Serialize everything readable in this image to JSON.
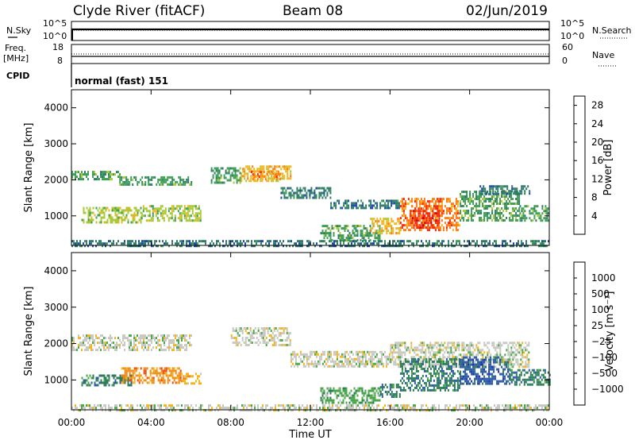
{
  "header": {
    "station": "Clyde River (fitACF)",
    "beam": "Beam 08",
    "date": "02/Jun/2019"
  },
  "status_panels": {
    "nsky_label": "N.Sky",
    "nsky_ticks": [
      "10^5",
      "10^0"
    ],
    "nsearch_label": "N.Search",
    "nsearch_ticks": [
      "10^5",
      "10^0"
    ],
    "freq_label": "Freq.",
    "freq_unit": "[MHz]",
    "freq_ticks": [
      "18",
      "8"
    ],
    "nave_label": "Nave",
    "nave_ticks": [
      "60",
      "0"
    ],
    "cpid_label": "CPID",
    "cpid_value": "normal (fast) 151"
  },
  "chart_data": [
    {
      "type": "heatmap",
      "name": "power-panel",
      "ylabel": "Slant Range [km]",
      "ylim": [
        180,
        4500
      ],
      "yticks": [
        "1000",
        "2000",
        "3000",
        "4000"
      ],
      "ytick_values": [
        1000,
        2000,
        3000,
        4000
      ],
      "xlim": [
        0,
        24
      ],
      "colorbar": {
        "label": "Power [dB]",
        "ticks": [
          "4",
          "8",
          "12",
          "16",
          "20",
          "24",
          "28"
        ],
        "range": [
          0,
          30
        ],
        "colors": [
          "#1a1aff",
          "#1f49a8",
          "#2f7a6a",
          "#3f9e55",
          "#a9c83a",
          "#f2b51e",
          "#ff7a10",
          "#ef2a12",
          "#c00000"
        ]
      },
      "bands": [
        {
          "t0": 0.0,
          "t1": 2.4,
          "r0": 2050,
          "r1": 2250,
          "level": 12
        },
        {
          "t0": 2.4,
          "t1": 6.0,
          "r0": 1850,
          "r1": 2100,
          "level": 10
        },
        {
          "t0": 0.5,
          "t1": 3.5,
          "r0": 850,
          "r1": 1250,
          "level": 14
        },
        {
          "t0": 3.5,
          "t1": 6.5,
          "r0": 900,
          "r1": 1300,
          "level": 15
        },
        {
          "t0": 7.0,
          "t1": 8.5,
          "r0": 1950,
          "r1": 2350,
          "level": 12
        },
        {
          "t0": 8.5,
          "t1": 11.0,
          "r0": 2000,
          "r1": 2400,
          "level": 18
        },
        {
          "t0": 9.0,
          "t1": 10.5,
          "r0": 2050,
          "r1": 2250,
          "level": 24
        },
        {
          "t0": 10.5,
          "t1": 13.0,
          "r0": 1500,
          "r1": 1800,
          "level": 9
        },
        {
          "t0": 13.0,
          "t1": 16.5,
          "r0": 1200,
          "r1": 1450,
          "level": 8
        },
        {
          "t0": 12.5,
          "t1": 15.5,
          "r0": 350,
          "r1": 750,
          "level": 10
        },
        {
          "t0": 15.0,
          "t1": 16.5,
          "r0": 500,
          "r1": 950,
          "level": 18
        },
        {
          "t0": 16.5,
          "t1": 19.5,
          "r0": 600,
          "r1": 1500,
          "level": 22
        },
        {
          "t0": 17.0,
          "t1": 18.5,
          "r0": 700,
          "r1": 1300,
          "level": 28
        },
        {
          "t0": 19.5,
          "t1": 22.5,
          "r0": 900,
          "r1": 1700,
          "level": 11
        },
        {
          "t0": 20.5,
          "t1": 23.0,
          "r0": 1650,
          "r1": 1850,
          "level": 7
        },
        {
          "t0": 22.5,
          "t1": 24.0,
          "r0": 900,
          "r1": 1300,
          "level": 13
        },
        {
          "t0": 0.0,
          "t1": 24.0,
          "r0": 180,
          "r1": 330,
          "level": 9
        }
      ]
    },
    {
      "type": "heatmap",
      "name": "velocity-panel",
      "ylabel": "Slant Range [km]",
      "ylim": [
        180,
        4500
      ],
      "yticks": [
        "1000",
        "2000",
        "3000",
        "4000"
      ],
      "ytick_values": [
        1000,
        2000,
        3000,
        4000
      ],
      "xlim": [
        0,
        24
      ],
      "xticks": [
        "00:00",
        "04:00",
        "08:00",
        "12:00",
        "16:00",
        "20:00",
        "00:00"
      ],
      "xtick_values": [
        0,
        4,
        8,
        12,
        16,
        20,
        24
      ],
      "xlabel": "Time UT",
      "colorbar": {
        "label": "Velocity [m s⁻¹]",
        "ticks": [
          "1000",
          "500",
          "100",
          "25",
          "−25",
          "−100",
          "−500",
          "−1000"
        ],
        "colors": [
          "#2130b8",
          "#2b5aa8",
          "#2f7c5a",
          "#4aa84a",
          "#c8c8c0",
          "#f4b51c",
          "#f28a14",
          "#ef4a12",
          "#e01010"
        ]
      },
      "bands": [
        {
          "t0": 0.0,
          "t1": 6.0,
          "r0": 1850,
          "r1": 2250,
          "cls": 4
        },
        {
          "t0": 8.0,
          "t1": 11.0,
          "r0": 1950,
          "r1": 2450,
          "cls": 4
        },
        {
          "t0": 11.0,
          "t1": 16.0,
          "r0": 1350,
          "r1": 1800,
          "cls": 4
        },
        {
          "t0": 16.0,
          "t1": 23.0,
          "r0": 1350,
          "r1": 2050,
          "cls": 4
        },
        {
          "t0": 0.5,
          "t1": 3.0,
          "r0": 850,
          "r1": 1150,
          "cls": 2
        },
        {
          "t0": 2.5,
          "t1": 5.5,
          "r0": 950,
          "r1": 1350,
          "cls": 6
        },
        {
          "t0": 5.5,
          "t1": 6.5,
          "r0": 900,
          "r1": 1200,
          "cls": 5
        },
        {
          "t0": 12.5,
          "t1": 15.5,
          "r0": 400,
          "r1": 800,
          "cls": 3
        },
        {
          "t0": 15.5,
          "t1": 16.5,
          "r0": 550,
          "r1": 900,
          "cls": 2
        },
        {
          "t0": 16.5,
          "t1": 19.5,
          "r0": 700,
          "r1": 1600,
          "cls": 2
        },
        {
          "t0": 19.5,
          "t1": 22.0,
          "r0": 900,
          "r1": 1650,
          "cls": 1
        },
        {
          "t0": 22.0,
          "t1": 24.0,
          "r0": 900,
          "r1": 1300,
          "cls": 2
        },
        {
          "t0": 0.0,
          "t1": 24.0,
          "r0": 180,
          "r1": 330,
          "cls": 4
        }
      ]
    }
  ]
}
